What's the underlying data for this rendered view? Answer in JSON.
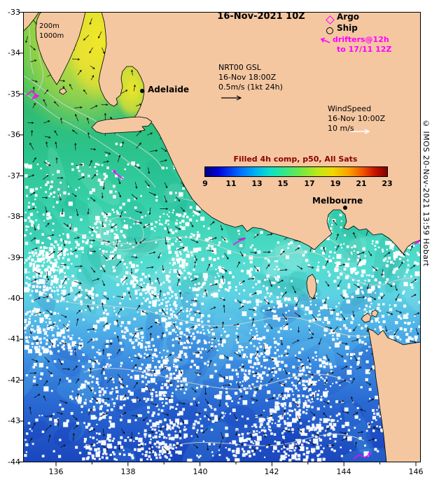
{
  "title": "16-Nov-2021 10Z",
  "depth": {
    "d200": "200m",
    "d1000": "1000m"
  },
  "legend": {
    "argo": "Argo",
    "ship": "Ship",
    "drifters": "drifters@12h",
    "drifters_to": "to 17/11 12Z"
  },
  "current_key": {
    "name": "NRT00 GSL",
    "time": "16-Nov 18:00Z",
    "scale": "0.5m/s (1kt 24h)"
  },
  "wind_key": {
    "name": "WindSpeed",
    "time": "16-Nov 10:00Z",
    "scale": "10 m/s"
  },
  "colorbar": {
    "title": "Filled 4h comp, p50, All Sats",
    "ticks": [
      "9",
      "11",
      "13",
      "15",
      "17",
      "19",
      "21",
      "23"
    ]
  },
  "cities": {
    "adelaide": "Adelaide",
    "melbourne": "Melbourne"
  },
  "axes": {
    "lat": [
      "-33",
      "-34",
      "-35",
      "-36",
      "-37",
      "-38",
      "-39",
      "-40",
      "-41",
      "-42",
      "-43",
      "-44"
    ],
    "lon": [
      "136",
      "138",
      "140",
      "142",
      "144",
      "146"
    ]
  },
  "credit": "© IMOS 20-Nov-2021 13:59 Hobart",
  "colors": {
    "land": "#F4C7A1",
    "magenta": "#FF00FF",
    "colorbar_title": "#8B0000",
    "ocean_warm": "#8CCE3C",
    "ocean_cold": "#1A46BE"
  }
}
